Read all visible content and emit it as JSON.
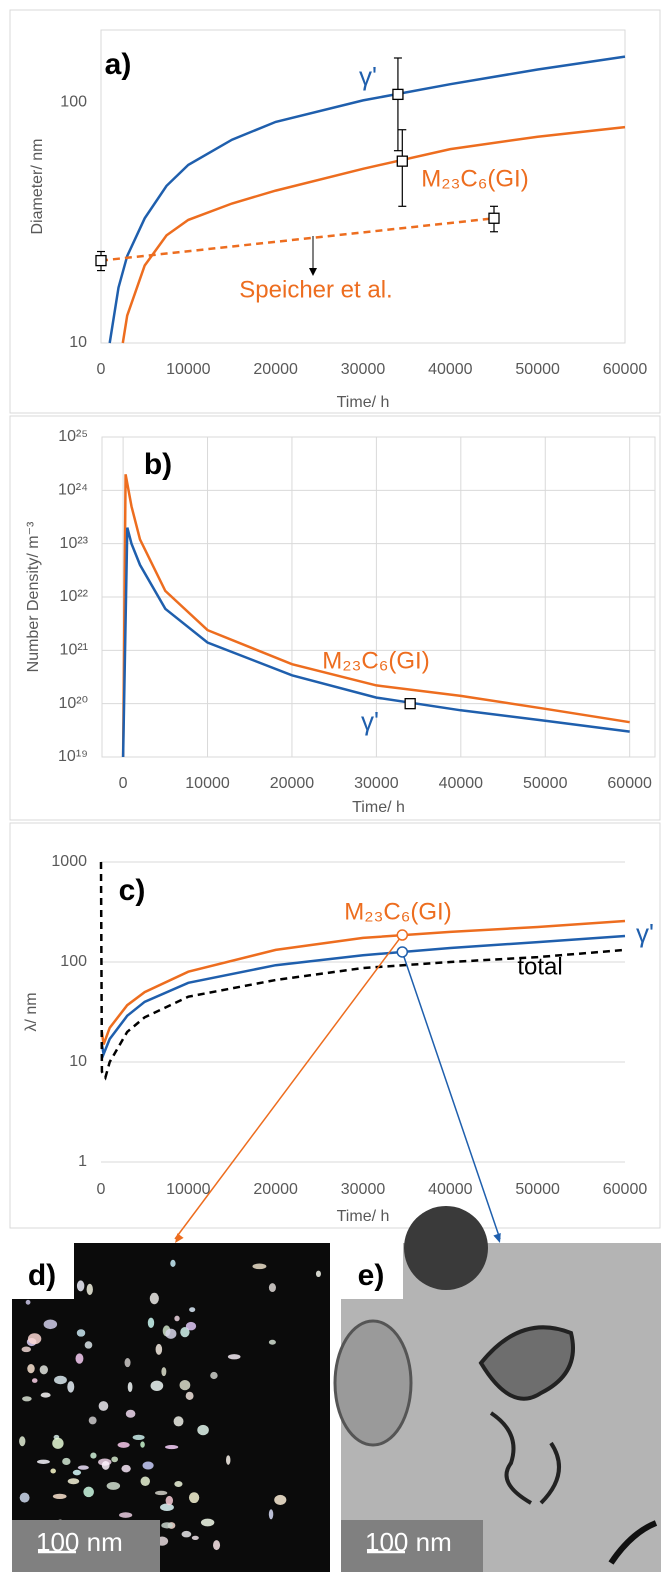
{
  "chart_data": [
    {
      "type": "line",
      "panel_label": "a)",
      "xlabel": "Time/ h",
      "ylabel": "Diameter/ nm",
      "log_y": true,
      "grid": "none",
      "xlim": [
        0,
        60000
      ],
      "ylim": [
        10,
        200
      ],
      "xticks": [
        0,
        10000,
        20000,
        30000,
        40000,
        50000,
        60000
      ],
      "yticks": [
        10,
        100
      ],
      "series": [
        {
          "name": "γ'",
          "color": "#1f5fad",
          "style": "solid",
          "x": [
            1000,
            2000,
            3000,
            5000,
            7500,
            10000,
            15000,
            20000,
            30000,
            40000,
            50000,
            60000
          ],
          "values": [
            10,
            17,
            23,
            33,
            45,
            55,
            70,
            83,
            102,
            119,
            137,
            155
          ]
        },
        {
          "name": "M₂₃C₆(GI)",
          "color": "#ed6d1f",
          "style": "solid",
          "x": [
            2500,
            3000,
            5000,
            7500,
            10000,
            15000,
            20000,
            30000,
            40000,
            50000,
            60000
          ],
          "values": [
            10,
            13,
            21,
            28,
            32.5,
            38,
            43,
            53,
            64,
            72,
            79
          ]
        },
        {
          "name": "Speicher et al.",
          "color": "#ed6d1f",
          "style": "dashed",
          "x": [
            0,
            45000
          ],
          "values": [
            22,
            33
          ]
        }
      ],
      "points": {
        "marker": "square",
        "x": [
          0,
          34000,
          34500,
          45000
        ],
        "values": [
          22,
          108,
          57,
          33
        ],
        "errors": [
          2,
          45,
          20,
          4
        ],
        "colors": [
          "#000000",
          "#000000",
          "#000000",
          "#000000"
        ]
      }
    },
    {
      "type": "line",
      "panel_label": "b)",
      "xlabel": "Time/ h",
      "ylabel": "Number Density/ m⁻³",
      "log_y": true,
      "grid": "both",
      "xlim": [
        -2500,
        63000
      ],
      "ylim": [
        1e+19,
        1e+25
      ],
      "xticks": [
        0,
        10000,
        20000,
        30000,
        40000,
        50000,
        60000
      ],
      "yticks": [
        {
          "value": 1e+19,
          "label": "10¹⁹"
        },
        {
          "value": 1e+20,
          "label": "10²⁰"
        },
        {
          "value": 1e+21,
          "label": "10²¹"
        },
        {
          "value": 1e+22,
          "label": "10²²"
        },
        {
          "value": 1e+23,
          "label": "10²³"
        },
        {
          "value": 1e+24,
          "label": "10²⁴"
        },
        {
          "value": 1e+25,
          "label": "10²⁵"
        }
      ],
      "series": [
        {
          "name": "M₂₃C₆(GI)",
          "color": "#ed6d1f",
          "style": "solid",
          "x": [
            0,
            300,
            1000,
            2000,
            5000,
            10000,
            20000,
            30000,
            40000,
            50000,
            60000
          ],
          "values": [
            1e+19,
            2e+24,
            5e+23,
            1.2e+23,
            1.3e+22,
            2.4e+21,
            5.5e+20,
            2.2e+20,
            1.4e+20,
            8e+19,
            4.5e+19
          ]
        },
        {
          "name": "γ'",
          "color": "#1f5fad",
          "style": "solid",
          "x": [
            0,
            500,
            1000,
            2000,
            5000,
            10000,
            20000,
            30000,
            40000,
            50000,
            60000
          ],
          "values": [
            1e+19,
            2e+23,
            1e+23,
            4e+22,
            6e+21,
            1.4e+21,
            3.4e+20,
            1.3e+20,
            7.5e+19,
            4.8e+19,
            3e+19
          ]
        }
      ],
      "points": {
        "marker": "square",
        "x": [
          34000
        ],
        "values": [
          1e+20
        ],
        "colors": [
          "#000000"
        ]
      }
    },
    {
      "type": "line",
      "panel_label": "c)",
      "xlabel": "Time/ h",
      "ylabel": "λ/ nm",
      "log_y": true,
      "grid": "y",
      "xlim": [
        0,
        60000
      ],
      "ylim": [
        1,
        1000
      ],
      "xticks": [
        0,
        10000,
        20000,
        30000,
        40000,
        50000,
        60000
      ],
      "yticks": [
        1,
        10,
        100,
        1000
      ],
      "series": [
        {
          "name": "M₂₃C₆(GI)",
          "color": "#ed6d1f",
          "style": "solid",
          "x": [
            100,
            300,
            1000,
            3000,
            5000,
            10000,
            20000,
            30000,
            40000,
            50000,
            60000
          ],
          "values": [
            20,
            15,
            22,
            37,
            50,
            80,
            132,
            174,
            200,
            224,
            257
          ]
        },
        {
          "name": "γ'",
          "color": "#1f5fad",
          "style": "solid",
          "x": [
            100,
            300,
            1000,
            3000,
            5000,
            10000,
            20000,
            30000,
            40000,
            50000,
            60000
          ],
          "values": [
            15,
            12,
            17,
            29,
            40,
            62,
            93,
            117,
            138,
            158,
            182
          ]
        },
        {
          "name": "total",
          "color": "#000000",
          "style": "dashed",
          "x": [
            0,
            100,
            500,
            1000,
            3000,
            5000,
            10000,
            20000,
            30000,
            40000,
            50000,
            60000
          ],
          "values": [
            1000,
            8,
            7,
            10,
            20,
            28,
            45,
            66,
            87,
            100,
            112,
            132
          ]
        }
      ],
      "points": {
        "marker": "circle",
        "x": [
          34500,
          34500
        ],
        "values": [
          186,
          126
        ],
        "colors": [
          "#ed6d1f",
          "#1f5fad"
        ]
      }
    }
  ],
  "micrographs": [
    {
      "label": "d)",
      "scale_bar": "100 nm"
    },
    {
      "label": "e)",
      "scale_bar": "100 nm"
    }
  ]
}
